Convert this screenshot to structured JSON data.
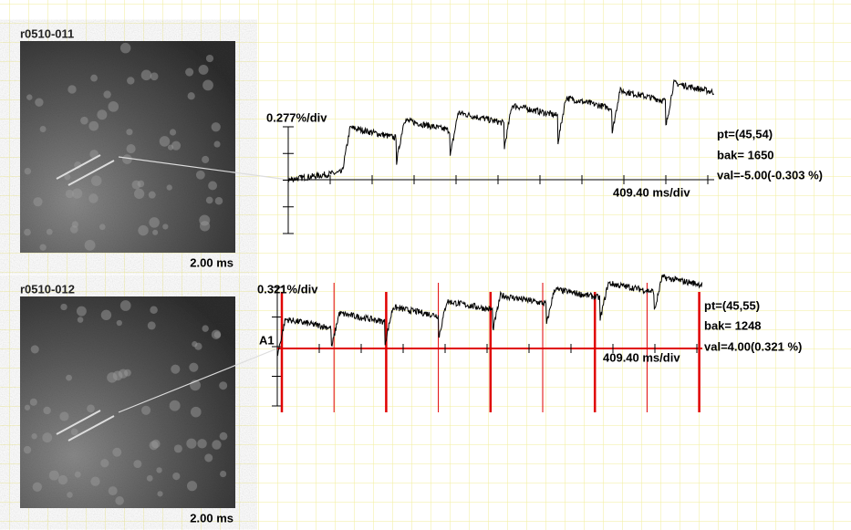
{
  "panels": [
    {
      "name": "r0510-011",
      "image_caption": "2.00 ms",
      "scale": "0.277%/div",
      "time_scale": "409.40 ms/div",
      "pt": "pt=(45,54)",
      "bak": "bak= 1650",
      "val": "val=-5.00(-0.303 %)"
    },
    {
      "name": "r0510-012",
      "image_caption": "2.00 ms",
      "scale": "0.321%/div",
      "time_scale": "409.40 ms/div",
      "pt": "pt=(45,55)",
      "bak": "bak= 1248",
      "val": "val=4.00(0.321 %)",
      "label": "A1"
    }
  ]
}
